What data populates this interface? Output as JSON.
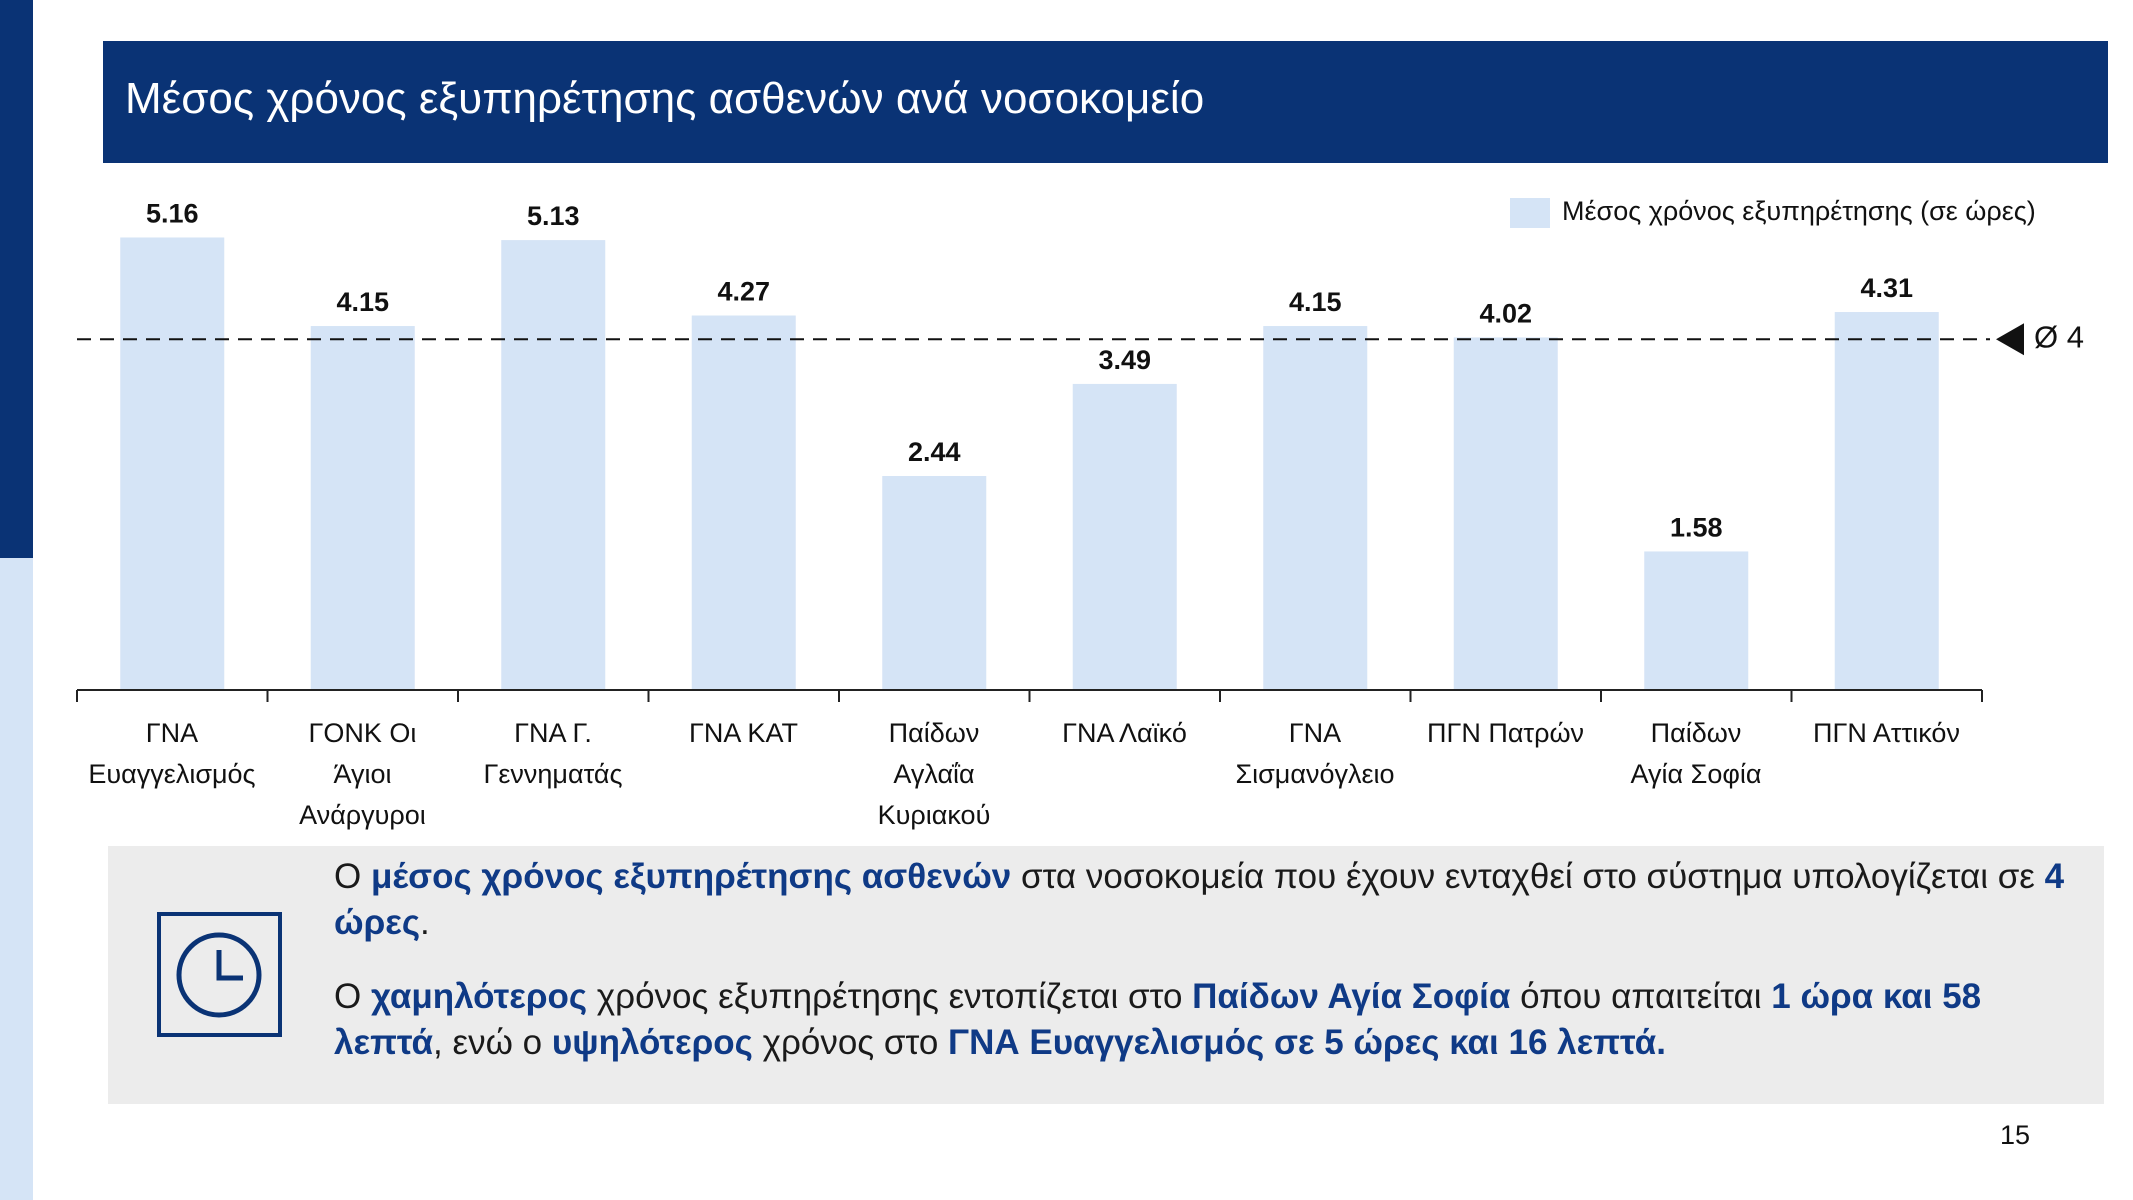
{
  "chart_data": {
    "type": "bar",
    "title": "Μέσος χρόνος εξυπηρέτησης ασθενών ανά νοσοκομείο",
    "categories": [
      "ΓΝΑ\nΕυαγγελισμός",
      "ΓΟΝΚ Οι\nΆγιοι\nΑνάργυροι",
      "ΓΝΑ Γ.\nΓεννηματάς",
      "ΓΝΑ ΚΑΤ",
      "Παίδων\nΑγλαΐα\nΚυριακού",
      "ΓΝΑ Λαϊκό",
      "ΓΝΑ\nΣισμανόγλειο",
      "ΠΓΝ Πατρών",
      "Παίδων\nΑγία Σοφία",
      "ΠΓΝ Αττικόν"
    ],
    "series": [
      {
        "name": "Μέσος χρόνος εξυπηρέτησης (σε ώρες)",
        "color": "#d5e4f6",
        "values": [
          5.16,
          4.15,
          5.13,
          4.27,
          2.44,
          3.49,
          4.15,
          4.02,
          1.58,
          4.31
        ]
      }
    ],
    "reference_line": {
      "value": 4,
      "label": "Ø 4"
    },
    "legend": "top-right"
  },
  "summary": {
    "paragraphs": [
      [
        {
          "text": "Ο ",
          "bold": false
        },
        {
          "text": "μέσος χρόνος εξυπηρέτησης ασθενών",
          "bold": true
        },
        {
          "text": " στα νοσοκομεία που έχουν ενταχθεί στο σύστημα υπολογίζεται σε ",
          "bold": false
        },
        {
          "text": "4 ώρες",
          "bold": true
        },
        {
          "text": ".",
          "bold": false
        }
      ],
      [
        {
          "text": "Ο ",
          "bold": false
        },
        {
          "text": "χαμηλότερος",
          "bold": true
        },
        {
          "text": " χρόνος εξυπηρέτησης εντοπίζεται στο ",
          "bold": false
        },
        {
          "text": "Παίδων Αγία Σοφία",
          "bold": true
        },
        {
          "text": " όπου απαιτείται ",
          "bold": false
        },
        {
          "text": "1 ώρα και 58 λεπτά",
          "bold": true
        },
        {
          "text": ", ενώ ο ",
          "bold": false
        },
        {
          "text": "υψηλότερος",
          "bold": true
        },
        {
          "text": " χρόνος στο ",
          "bold": false
        },
        {
          "text": "ΓΝΑ Ευαγγελισμός σε 5 ώρες και 16 λεπτά.",
          "bold": true
        }
      ]
    ]
  },
  "page_number": "15"
}
